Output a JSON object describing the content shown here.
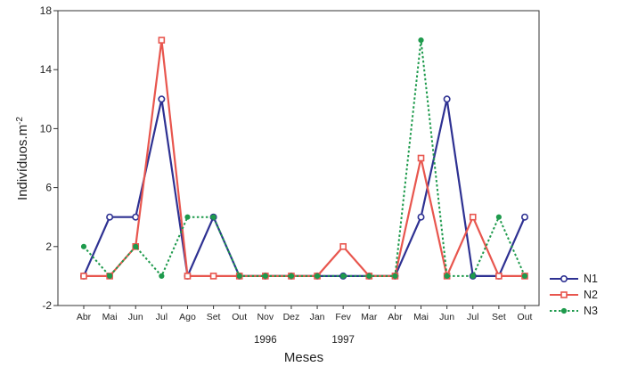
{
  "chart_data": {
    "type": "line",
    "xlabel": "Meses",
    "ylabel": "Indivíduos.m-2",
    "ylabel_base": "Indivíduos.m",
    "ylabel_exp": "-2",
    "categories": [
      "Abr",
      "Mai",
      "Jun",
      "Jul",
      "Ago",
      "Set",
      "Out",
      "Nov",
      "Dez",
      "Jan",
      "Fev",
      "Mar",
      "Abr",
      "Mai",
      "Jun",
      "Jul",
      "Set",
      "Out"
    ],
    "year_labels": [
      {
        "label": "1996",
        "category_index": 7
      },
      {
        "label": "1997",
        "category_index": 10
      }
    ],
    "ylim": [
      -2,
      18
    ],
    "yticks": [
      -2,
      2,
      6,
      10,
      14,
      18
    ],
    "grid": false,
    "legend_position": "right",
    "series": [
      {
        "name": "N1",
        "color": "#2e3192",
        "marker": "circle",
        "dash": "solid",
        "values": [
          0,
          4,
          4,
          12,
          0,
          4,
          0,
          0,
          0,
          0,
          0,
          0,
          0,
          4,
          12,
          0,
          0,
          4
        ]
      },
      {
        "name": "N2",
        "color": "#e8564e",
        "marker": "square",
        "dash": "solid",
        "values": [
          0,
          0,
          2,
          16,
          0,
          0,
          0,
          0,
          0,
          0,
          2,
          0,
          0,
          8,
          0,
          4,
          0,
          0
        ]
      },
      {
        "name": "N3",
        "color": "#1e9a4c",
        "marker": "dot",
        "dash": "dotted",
        "values": [
          2,
          0,
          2,
          0,
          4,
          4,
          0,
          0,
          0,
          0,
          0,
          0,
          0,
          16,
          0,
          0,
          4,
          0
        ]
      }
    ]
  }
}
